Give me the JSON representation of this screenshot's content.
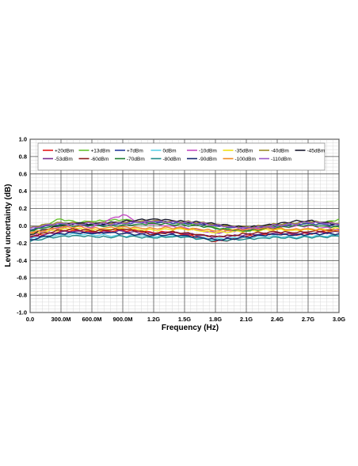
{
  "chart_data": {
    "type": "line",
    "title": "",
    "xlabel": "Frequency (Hz)",
    "ylabel": "Level uncertainty (dB)",
    "xlim": [
      0,
      3000000000
    ],
    "ylim": [
      -1.0,
      1.0
    ],
    "x_ticks": [
      0,
      300000000,
      600000000,
      900000000,
      1200000000,
      1500000000,
      1800000000,
      2100000000,
      2400000000,
      2700000000,
      3000000000
    ],
    "x_tick_labels": [
      "0.0",
      "300.0M",
      "600.0M",
      "900.0M",
      "1.2G",
      "1.5G",
      "1.8G",
      "2.1G",
      "2.4G",
      "2.7G",
      "3.0G"
    ],
    "y_ticks": [
      -1.0,
      -0.8,
      -0.6,
      -0.4,
      -0.2,
      0.0,
      0.2,
      0.4,
      0.6,
      0.8,
      1.0
    ],
    "y_tick_labels": [
      "-1.0",
      "-0.8",
      "-0.6",
      "-0.4",
      "-0.2",
      "0.0",
      "0.2",
      "0.4",
      "0.6",
      "0.8",
      "1.0"
    ],
    "grid": true,
    "legend_position": "top",
    "x": [
      0,
      150000000,
      300000000,
      450000000,
      600000000,
      750000000,
      900000000,
      1050000000,
      1200000000,
      1350000000,
      1500000000,
      1650000000,
      1800000000,
      1950000000,
      2100000000,
      2250000000,
      2400000000,
      2550000000,
      2700000000,
      2850000000,
      3000000000
    ],
    "series": [
      {
        "name": "+20dBm",
        "color": "#e41a1c",
        "values": [
          -0.08,
          -0.1,
          -0.06,
          -0.05,
          -0.07,
          -0.06,
          -0.05,
          -0.06,
          -0.08,
          -0.07,
          -0.1,
          -0.14,
          -0.18,
          -0.16,
          -0.12,
          -0.1,
          -0.08,
          -0.1,
          -0.09,
          -0.07,
          -0.06
        ]
      },
      {
        "name": "+13dBm",
        "color": "#66c22e",
        "values": [
          -0.05,
          0.02,
          0.08,
          0.04,
          0.05,
          0.06,
          0.07,
          0.05,
          0.04,
          0.05,
          0.03,
          0.02,
          -0.02,
          -0.04,
          -0.06,
          -0.02,
          0.0,
          0.02,
          0.04,
          0.03,
          0.08
        ]
      },
      {
        "name": "+7dBm",
        "color": "#2a3f9f",
        "values": [
          -0.05,
          0.0,
          0.02,
          0.03,
          0.01,
          0.02,
          0.03,
          0.04,
          0.05,
          0.04,
          0.03,
          0.02,
          0.0,
          -0.02,
          -0.03,
          -0.02,
          0.0,
          0.02,
          0.03,
          0.02,
          0.01
        ]
      },
      {
        "name": "0dBm",
        "color": "#5fd0e8",
        "values": [
          -0.15,
          -0.12,
          -0.1,
          -0.09,
          -0.1,
          -0.11,
          -0.12,
          -0.11,
          -0.13,
          -0.12,
          -0.12,
          -0.14,
          -0.15,
          -0.14,
          -0.13,
          -0.12,
          -0.12,
          -0.13,
          -0.12,
          -0.12,
          -0.11
        ]
      },
      {
        "name": "-10dBm",
        "color": "#c44fc4",
        "values": [
          -0.12,
          -0.06,
          -0.02,
          0.0,
          -0.02,
          0.06,
          0.13,
          0.05,
          0.02,
          0.0,
          -0.02,
          -0.05,
          -0.08,
          -0.06,
          -0.04,
          -0.03,
          -0.02,
          -0.01,
          0.0,
          -0.02,
          -0.04
        ]
      },
      {
        "name": "-35dBm",
        "color": "#f0e015",
        "values": [
          -0.1,
          -0.07,
          -0.04,
          -0.03,
          -0.05,
          -0.04,
          -0.03,
          -0.04,
          -0.05,
          -0.04,
          -0.04,
          -0.06,
          -0.08,
          -0.07,
          -0.06,
          -0.05,
          -0.04,
          -0.05,
          -0.04,
          -0.04,
          -0.03
        ]
      },
      {
        "name": "-40dBm",
        "color": "#9a8a2a",
        "values": [
          -0.02,
          0.02,
          0.04,
          0.03,
          0.04,
          0.03,
          0.04,
          0.05,
          0.06,
          0.05,
          0.05,
          0.04,
          0.02,
          0.0,
          -0.01,
          0.0,
          0.02,
          0.03,
          0.05,
          0.04,
          0.03
        ]
      },
      {
        "name": "-45dBm",
        "color": "#1a1a2e",
        "values": [
          -0.1,
          -0.04,
          0.0,
          0.03,
          0.02,
          0.03,
          0.05,
          0.07,
          0.08,
          0.07,
          0.05,
          0.04,
          0.02,
          0.0,
          -0.02,
          0.0,
          0.02,
          0.05,
          0.06,
          0.04,
          0.02
        ]
      },
      {
        "name": "-53dBm",
        "color": "#7a2d91",
        "values": [
          -0.14,
          -0.1,
          -0.07,
          -0.06,
          -0.08,
          -0.07,
          -0.06,
          -0.08,
          -0.09,
          -0.08,
          -0.09,
          -0.11,
          -0.13,
          -0.12,
          -0.1,
          -0.09,
          -0.08,
          -0.09,
          -0.08,
          -0.08,
          -0.07
        ]
      },
      {
        "name": "-60dBm",
        "color": "#8b1a1a",
        "values": [
          -0.12,
          -0.08,
          -0.05,
          -0.04,
          -0.06,
          -0.05,
          -0.04,
          -0.06,
          -0.1,
          -0.07,
          -0.08,
          -0.1,
          -0.12,
          -0.11,
          -0.09,
          -0.08,
          -0.07,
          -0.08,
          -0.07,
          -0.06,
          -0.05
        ]
      },
      {
        "name": "-70dBm",
        "color": "#1e7d32",
        "values": [
          -0.06,
          -0.02,
          0.01,
          0.0,
          0.01,
          0.0,
          0.01,
          0.02,
          0.03,
          0.02,
          0.01,
          0.0,
          -0.03,
          -0.05,
          -0.06,
          -0.04,
          -0.02,
          0.0,
          0.01,
          0.0,
          -0.01
        ]
      },
      {
        "name": "-80dBm",
        "color": "#1f8a8a",
        "values": [
          -0.18,
          -0.14,
          -0.12,
          -0.11,
          -0.12,
          -0.13,
          -0.12,
          -0.13,
          -0.14,
          -0.13,
          -0.13,
          -0.15,
          -0.17,
          -0.16,
          -0.15,
          -0.14,
          -0.13,
          -0.14,
          -0.13,
          -0.13,
          -0.12
        ]
      },
      {
        "name": "-90dBm",
        "color": "#14286e",
        "values": [
          -0.16,
          -0.12,
          -0.09,
          -0.08,
          -0.09,
          -0.08,
          -0.09,
          -0.1,
          -0.11,
          -0.1,
          -0.11,
          -0.13,
          -0.16,
          -0.15,
          -0.13,
          -0.11,
          -0.1,
          -0.11,
          -0.1,
          -0.09,
          -0.09
        ]
      },
      {
        "name": "-100dBm",
        "color": "#f08a24",
        "values": [
          -0.08,
          -0.05,
          -0.02,
          -0.01,
          -0.03,
          -0.02,
          -0.01,
          -0.02,
          -0.03,
          -0.02,
          -0.03,
          -0.04,
          -0.06,
          -0.05,
          -0.04,
          -0.03,
          -0.03,
          -0.04,
          -0.03,
          -0.05,
          -0.06
        ]
      },
      {
        "name": "-110dBm",
        "color": "#9b59c9",
        "values": [
          -0.03,
          0.01,
          0.03,
          0.02,
          0.03,
          0.02,
          0.03,
          0.04,
          0.05,
          0.04,
          0.04,
          0.03,
          0.01,
          -0.01,
          -0.02,
          -0.01,
          0.01,
          0.02,
          0.04,
          0.03,
          0.02
        ]
      }
    ]
  }
}
